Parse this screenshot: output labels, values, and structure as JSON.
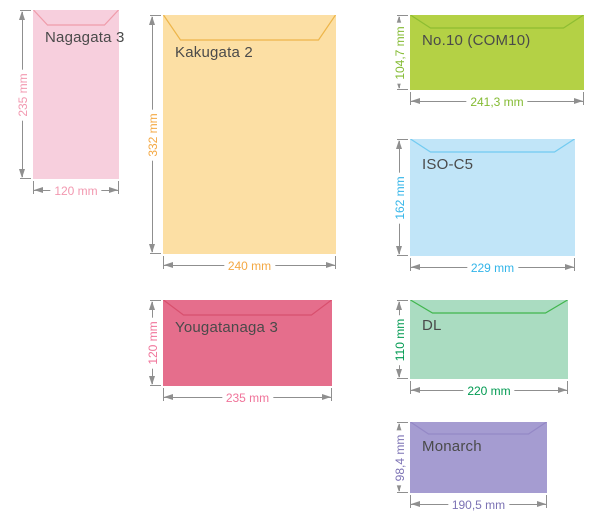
{
  "page": {
    "background": "#ffffff",
    "dimension_line_color": "#8f8f8f",
    "name_text_color": "#4a4a4a"
  },
  "envelopes": [
    {
      "id": "nagagata3",
      "name": "Nagagata 3",
      "height_label": "235 mm",
      "width_label": "120 mm",
      "height_mm": 235,
      "width_mm": 120,
      "fill": "#f7cfdd",
      "flap_stroke": "#ef9caa",
      "dim_text_color": "#f298b0"
    },
    {
      "id": "kakugata2",
      "name": "Kakugata 2",
      "height_label": "332 mm",
      "width_label": "240 mm",
      "height_mm": 332,
      "width_mm": 240,
      "fill": "#fcdfa4",
      "flap_stroke": "#edb54a",
      "dim_text_color": "#f4a843"
    },
    {
      "id": "yougatanaga3",
      "name": "Yougatanaga 3",
      "height_label": "120 mm",
      "width_label": "235 mm",
      "height_mm": 120,
      "width_mm": 235,
      "fill": "#e56e8c",
      "flap_stroke": "#d8506e",
      "dim_text_color": "#f0749a"
    },
    {
      "id": "no10",
      "name": "No.10 (COM10)",
      "height_label": "104,7 mm",
      "width_label": "241,3 mm",
      "height_mm": 104.7,
      "width_mm": 241.3,
      "fill": "#b4d145",
      "flap_stroke": "#8dbd32",
      "dim_text_color": "#84bb33"
    },
    {
      "id": "isoc5",
      "name": "ISO-C5",
      "height_label": "162 mm",
      "width_label": "229 mm",
      "height_mm": 162,
      "width_mm": 229,
      "fill": "#c1e5f8",
      "flap_stroke": "#72cbf1",
      "dim_text_color": "#33b5e9"
    },
    {
      "id": "dl",
      "name": "DL",
      "height_label": "110 mm",
      "width_label": "220 mm",
      "height_mm": 110,
      "width_mm": 220,
      "fill": "#aadcc1",
      "flap_stroke": "#41b64e",
      "dim_text_color": "#009a51"
    },
    {
      "id": "monarch",
      "name": "Monarch",
      "height_label": "98,4 mm",
      "width_label": "190,5 mm",
      "height_mm": 98.4,
      "width_mm": 190.5,
      "fill": "#a59cd1",
      "flap_stroke": "#9488c6",
      "dim_text_color": "#7c72b4"
    }
  ]
}
